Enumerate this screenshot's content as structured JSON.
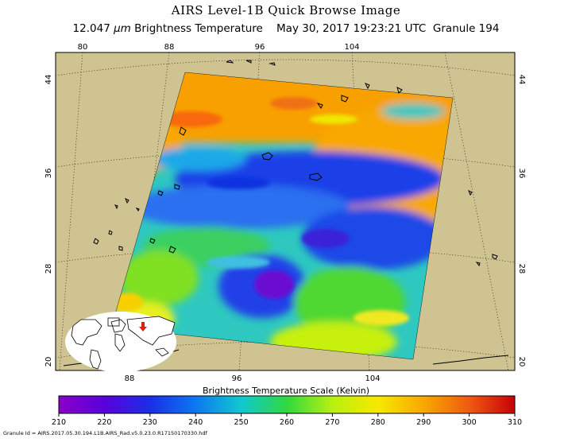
{
  "title": "AIRS Level-1B Quick Browse Image",
  "subtitle": {
    "wavelength": "12.047",
    "unit_symbol": "μm",
    "product": "Brightness Temperature",
    "datetime": "May 30, 2017 19:23:21 UTC",
    "granule": "Granule 194"
  },
  "map": {
    "lon_labels_top": [
      "80",
      "88",
      "96",
      "104"
    ],
    "lon_labels_bottom": [
      "88",
      "96",
      "104"
    ],
    "lat_labels_left": [
      "44",
      "36",
      "28",
      "20"
    ],
    "lat_labels_right": [
      "44",
      "36",
      "28",
      "20"
    ],
    "background_color": "#cfc391",
    "grid_style": "dotted",
    "inset_marker_color": "#e02010"
  },
  "colorbar": {
    "title": "Brightness Temperature Scale (Kelvin)",
    "min": 210,
    "max": 310,
    "ticks": [
      "210",
      "220",
      "230",
      "240",
      "250",
      "260",
      "270",
      "280",
      "290",
      "300",
      "310"
    ],
    "colors": [
      "#8a00c8",
      "#5a00dc",
      "#1a2ee8",
      "#0c78f0",
      "#10c8d0",
      "#30d840",
      "#b8f010",
      "#f8e800",
      "#f8a800",
      "#f05a10",
      "#c80008"
    ]
  },
  "granule_id": "Granule Id = AIRS.2017.05.30.194.L1B.AIRS_Rad.v5.0.23.0.R17150170330.hdf"
}
